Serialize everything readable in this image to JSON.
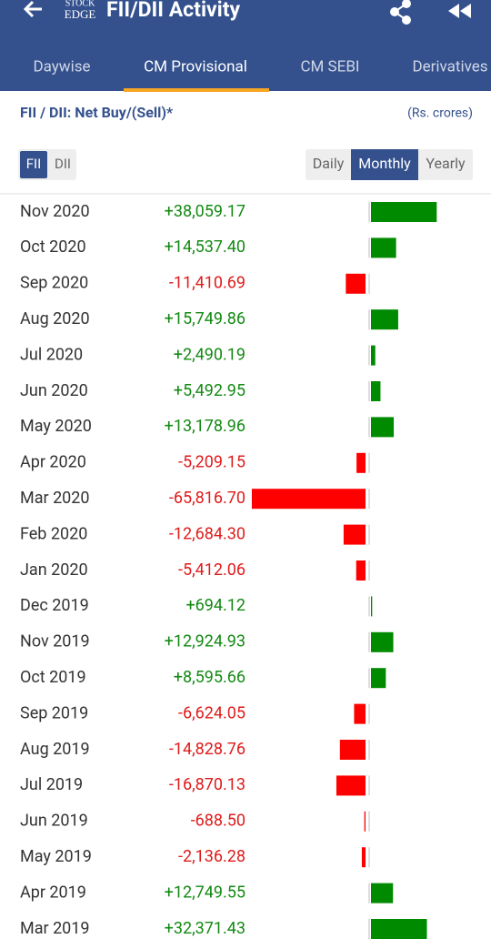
{
  "header": {
    "logo_top": "STOCK",
    "logo_bottom": "EDGE",
    "title": "FII/DII Activity"
  },
  "tabs": [
    "Daywise",
    "CM Provisional",
    "CM SEBI",
    "Derivatives"
  ],
  "subtitle": "FII / DII: Net Buy/(Sell)*",
  "unit": "(Rs. crores)",
  "investor_toggle": [
    "FII",
    "DII"
  ],
  "period_toggle": [
    "Daily",
    "Monthly",
    "Yearly"
  ],
  "rows": [
    {
      "month": "Nov 2020",
      "value": 38059.17,
      "value_label": "+38,059.17"
    },
    {
      "month": "Oct 2020",
      "value": 14537.4,
      "value_label": "+14,537.40"
    },
    {
      "month": "Sep 2020",
      "value": -11410.69,
      "value_label": "-11,410.69"
    },
    {
      "month": "Aug 2020",
      "value": 15749.86,
      "value_label": "+15,749.86"
    },
    {
      "month": "Jul 2020",
      "value": 2490.19,
      "value_label": "+2,490.19"
    },
    {
      "month": "Jun 2020",
      "value": 5492.95,
      "value_label": "+5,492.95"
    },
    {
      "month": "May 2020",
      "value": 13178.96,
      "value_label": "+13,178.96"
    },
    {
      "month": "Apr 2020",
      "value": -5209.15,
      "value_label": "-5,209.15"
    },
    {
      "month": "Mar 2020",
      "value": -65816.7,
      "value_label": "-65,816.70"
    },
    {
      "month": "Feb 2020",
      "value": -12684.3,
      "value_label": "-12,684.30"
    },
    {
      "month": "Jan 2020",
      "value": -5412.06,
      "value_label": "-5,412.06"
    },
    {
      "month": "Dec 2019",
      "value": 694.12,
      "value_label": "+694.12"
    },
    {
      "month": "Nov 2019",
      "value": 12924.93,
      "value_label": "+12,924.93"
    },
    {
      "month": "Oct 2019",
      "value": 8595.66,
      "value_label": "+8,595.66"
    },
    {
      "month": "Sep 2019",
      "value": -6624.05,
      "value_label": "-6,624.05"
    },
    {
      "month": "Aug 2019",
      "value": -14828.76,
      "value_label": "-14,828.76"
    },
    {
      "month": "Jul 2019",
      "value": -16870.13,
      "value_label": "-16,870.13"
    },
    {
      "month": "Jun 2019",
      "value": -688.5,
      "value_label": "-688.50"
    },
    {
      "month": "May 2019",
      "value": -2136.28,
      "value_label": "-2,136.28"
    },
    {
      "month": "Apr 2019",
      "value": 12749.55,
      "value_label": "+12,749.55"
    },
    {
      "month": "Mar 2019",
      "value": 32371.43,
      "value_label": "+32,371.43"
    }
  ]
}
